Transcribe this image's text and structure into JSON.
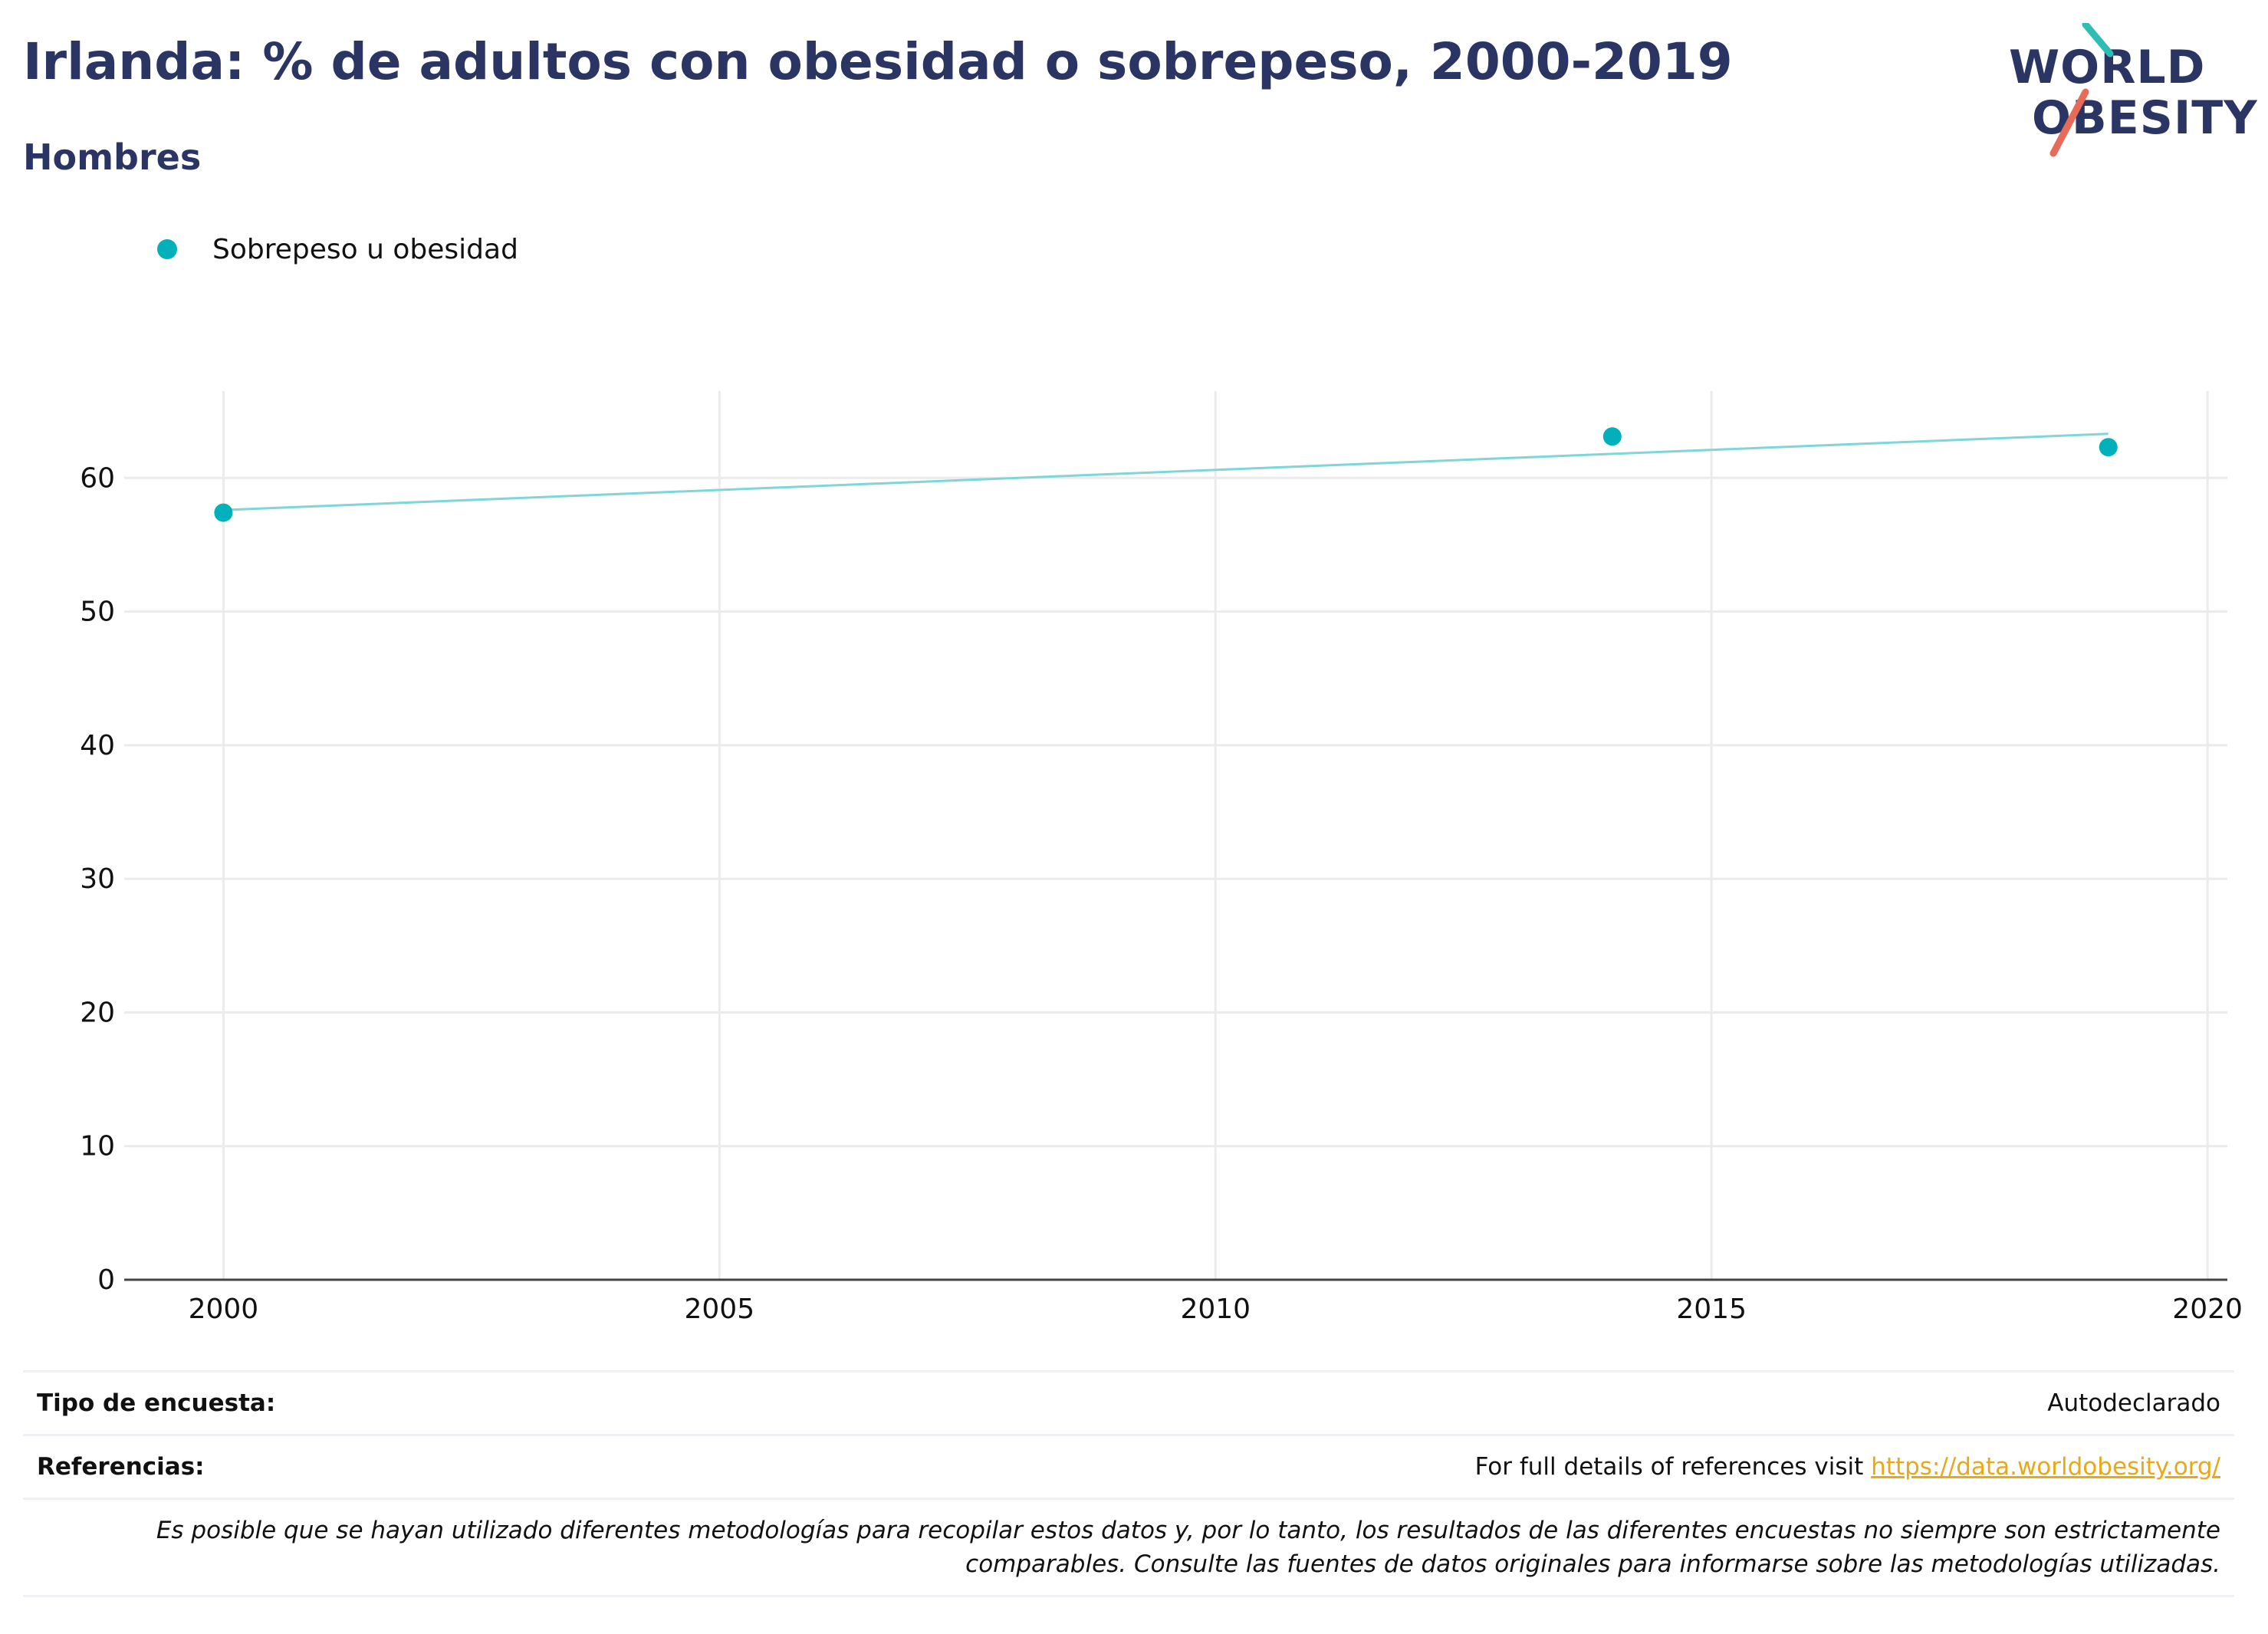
{
  "header": {
    "title": "Irlanda: % de adultos con obesidad o sobrepeso, 2000-2019",
    "subtitle": "Hombres"
  },
  "logo": {
    "line1": "WORLD",
    "line2": "OBESITY",
    "colors": {
      "text": "#2a3563",
      "teal": "#2ebdb5",
      "coral": "#e86a58"
    }
  },
  "chart_data": {
    "type": "scatter",
    "title": "",
    "xlabel": "",
    "ylabel": "",
    "xlim": [
      1999,
      2020.2
    ],
    "ylim": [
      0,
      66.5
    ],
    "x_ticks": [
      2000,
      2005,
      2010,
      2015,
      2020
    ],
    "y_ticks": [
      0,
      10,
      20,
      30,
      40,
      50,
      60
    ],
    "grid": true,
    "legend_position": "top-left",
    "series": [
      {
        "name": "Sobrepeso u obesidad",
        "color": "#00b1bc",
        "points": [
          {
            "x": 2000,
            "y": 57.4
          },
          {
            "x": 2014,
            "y": 63.1
          },
          {
            "x": 2019,
            "y": 62.3
          }
        ]
      }
    ],
    "trendline": {
      "color": "#7fd6d8",
      "points": [
        {
          "x": 2000,
          "y": 57.6
        },
        {
          "x": 2019,
          "y": 63.3
        }
      ]
    }
  },
  "footer": {
    "survey_label": "Tipo de encuesta:",
    "survey_value": "Autodeclarado",
    "refs_label": "Referencias:",
    "refs_text": "For full details of references visit",
    "refs_link": "https://data.worldobesity.org/",
    "note": "Es posible que se hayan utilizado diferentes metodologías para recopilar estos datos y, por lo tanto, los resultados de las diferentes encuestas no siempre son estrictamente comparables. Consulte las fuentes de datos originales para informarse sobre las metodologías utilizadas."
  }
}
